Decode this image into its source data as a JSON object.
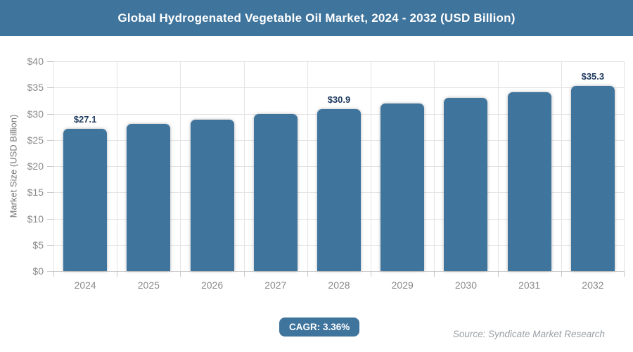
{
  "header": {
    "title": "Global Hydrogenated Vegetable Oil Market, 2024 - 2032 (USD Billion)"
  },
  "chart_data": {
    "type": "bar",
    "title": "Global Hydrogenated Vegetable Oil Market, 2024 - 2032 (USD Billion)",
    "categories": [
      "2024",
      "2025",
      "2026",
      "2027",
      "2028",
      "2029",
      "2030",
      "2031",
      "2032"
    ],
    "values": [
      27.1,
      28.0,
      28.9,
      29.9,
      30.9,
      31.9,
      33.0,
      34.1,
      35.3
    ],
    "data_labels": [
      {
        "index": 0,
        "text": "$27.1"
      },
      {
        "index": 4,
        "text": "$30.9"
      },
      {
        "index": 8,
        "text": "$35.3"
      }
    ],
    "xlabel": "",
    "ylabel": "Market Size (USD Billion)",
    "ylim": [
      0,
      40
    ],
    "ytick_step": 5,
    "ytick_labels": [
      "$0",
      "$5",
      "$10",
      "$15",
      "$20",
      "$25",
      "$30",
      "$35",
      "$40"
    ],
    "grid": true,
    "legend": "none",
    "bar_color": "#3f749d"
  },
  "footer": {
    "cagr_label": "CAGR: 3.36%",
    "source": "Source: Syndicate Market Research"
  },
  "colors": {
    "accent": "#3f749d",
    "grid": "#e4e4e4",
    "axis": "#c8c8c8",
    "tick_text": "#8b8b8b",
    "y_title": "#767676",
    "bar_label": "#1e3a5f",
    "source_text": "#9aa0a6"
  }
}
